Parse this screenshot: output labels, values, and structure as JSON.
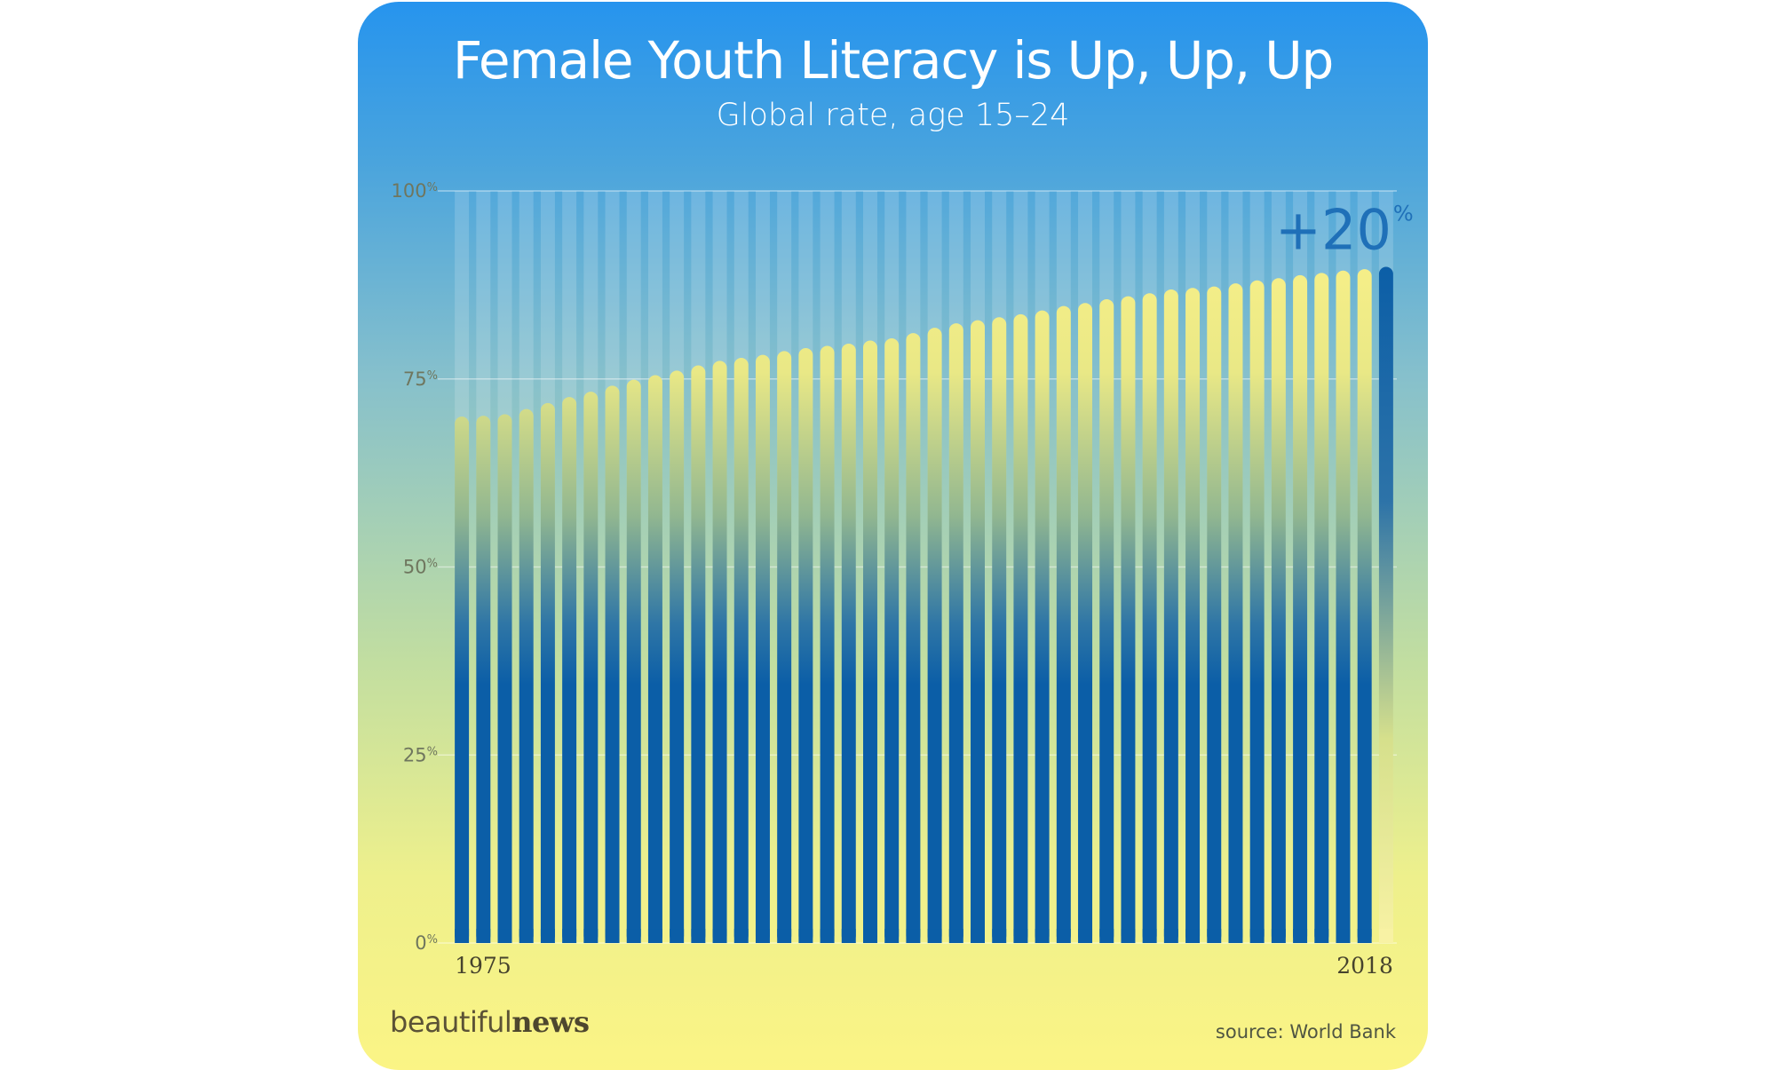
{
  "header": {
    "title": "Female Youth Literacy is Up, Up, Up",
    "subtitle": "Global rate, age 15–24"
  },
  "footer": {
    "brand_light": "beautiful",
    "brand_bold": "news",
    "source": "source: World Bank"
  },
  "chart_data": {
    "type": "bar",
    "title": "Female Youth Literacy is Up, Up, Up",
    "subtitle": "Global rate, age 15–24",
    "xlabel": "",
    "ylabel": "",
    "ylim": [
      0,
      100
    ],
    "y_ticks": [
      {
        "value": 0,
        "label": "0%"
      },
      {
        "value": 25,
        "label": "25%"
      },
      {
        "value": 50,
        "label": "50%"
      },
      {
        "value": 75,
        "label": "75%"
      },
      {
        "value": 100,
        "label": "100%"
      }
    ],
    "x_tick_labels": [
      "1975",
      "2018"
    ],
    "categories": [
      "1975",
      "1976",
      "1977",
      "1978",
      "1979",
      "1980",
      "1981",
      "1982",
      "1983",
      "1984",
      "1985",
      "1986",
      "1987",
      "1988",
      "1989",
      "1990",
      "1991",
      "1992",
      "1993",
      "1994",
      "1995",
      "1996",
      "1997",
      "1998",
      "1999",
      "2000",
      "2001",
      "2002",
      "2003",
      "2004",
      "2005",
      "2006",
      "2007",
      "2008",
      "2009",
      "2010",
      "2011",
      "2012",
      "2013",
      "2014",
      "2015",
      "2016",
      "2017",
      "2018"
    ],
    "values": [
      70.0,
      70.1,
      70.3,
      71.0,
      71.8,
      72.6,
      73.3,
      74.1,
      74.9,
      75.5,
      76.1,
      76.8,
      77.4,
      77.8,
      78.2,
      78.7,
      79.1,
      79.4,
      79.7,
      80.1,
      80.4,
      81.1,
      81.8,
      82.4,
      82.8,
      83.2,
      83.6,
      84.1,
      84.7,
      85.1,
      85.6,
      86.0,
      86.4,
      86.9,
      87.1,
      87.3,
      87.7,
      88.1,
      88.4,
      88.8,
      89.1,
      89.4,
      89.6,
      89.9
    ],
    "gridlines": true,
    "bar_top_color": "#f6ef88",
    "bar_base_color": "#0b5ea7",
    "highlight": {
      "index": 43,
      "label": "+20",
      "unit": "%",
      "color": "#1f70b8"
    }
  }
}
